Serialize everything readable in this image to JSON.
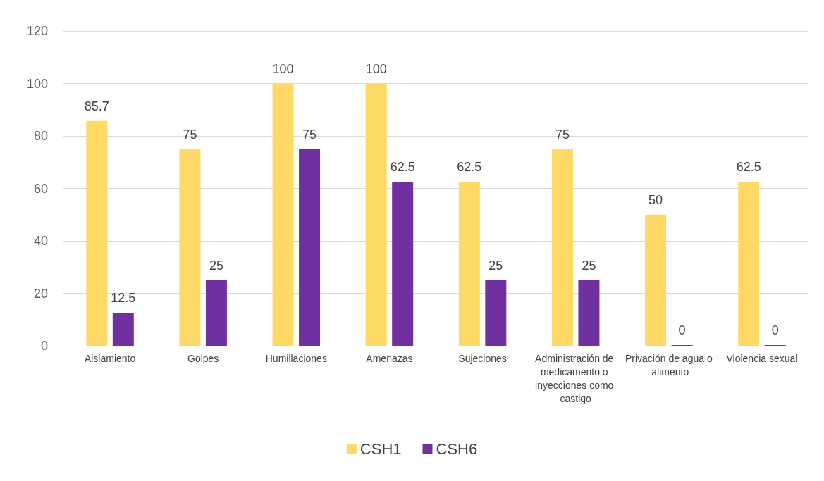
{
  "chart_data": {
    "type": "bar",
    "categories": [
      "Aislamiento",
      "Golpes",
      "Humillaciones",
      "Amenazas",
      "Sujeciones",
      "Administración de medicamento o inyecciones como castigo",
      "Privación de agua o alimento",
      "Violencia sexual"
    ],
    "series": [
      {
        "name": "CSH1",
        "color": "#ffd966",
        "values": [
          85.7,
          75,
          100,
          100,
          62.5,
          75,
          50,
          62.5
        ]
      },
      {
        "name": "CSH6",
        "color": "#7030a0",
        "values": [
          12.5,
          25,
          75,
          62.5,
          25,
          25,
          0,
          0
        ]
      }
    ],
    "ylim": [
      0,
      120
    ],
    "yticks": [
      0,
      20,
      40,
      60,
      80,
      100,
      120
    ],
    "grid": "y",
    "legend": "bottom",
    "data_labels": true
  }
}
